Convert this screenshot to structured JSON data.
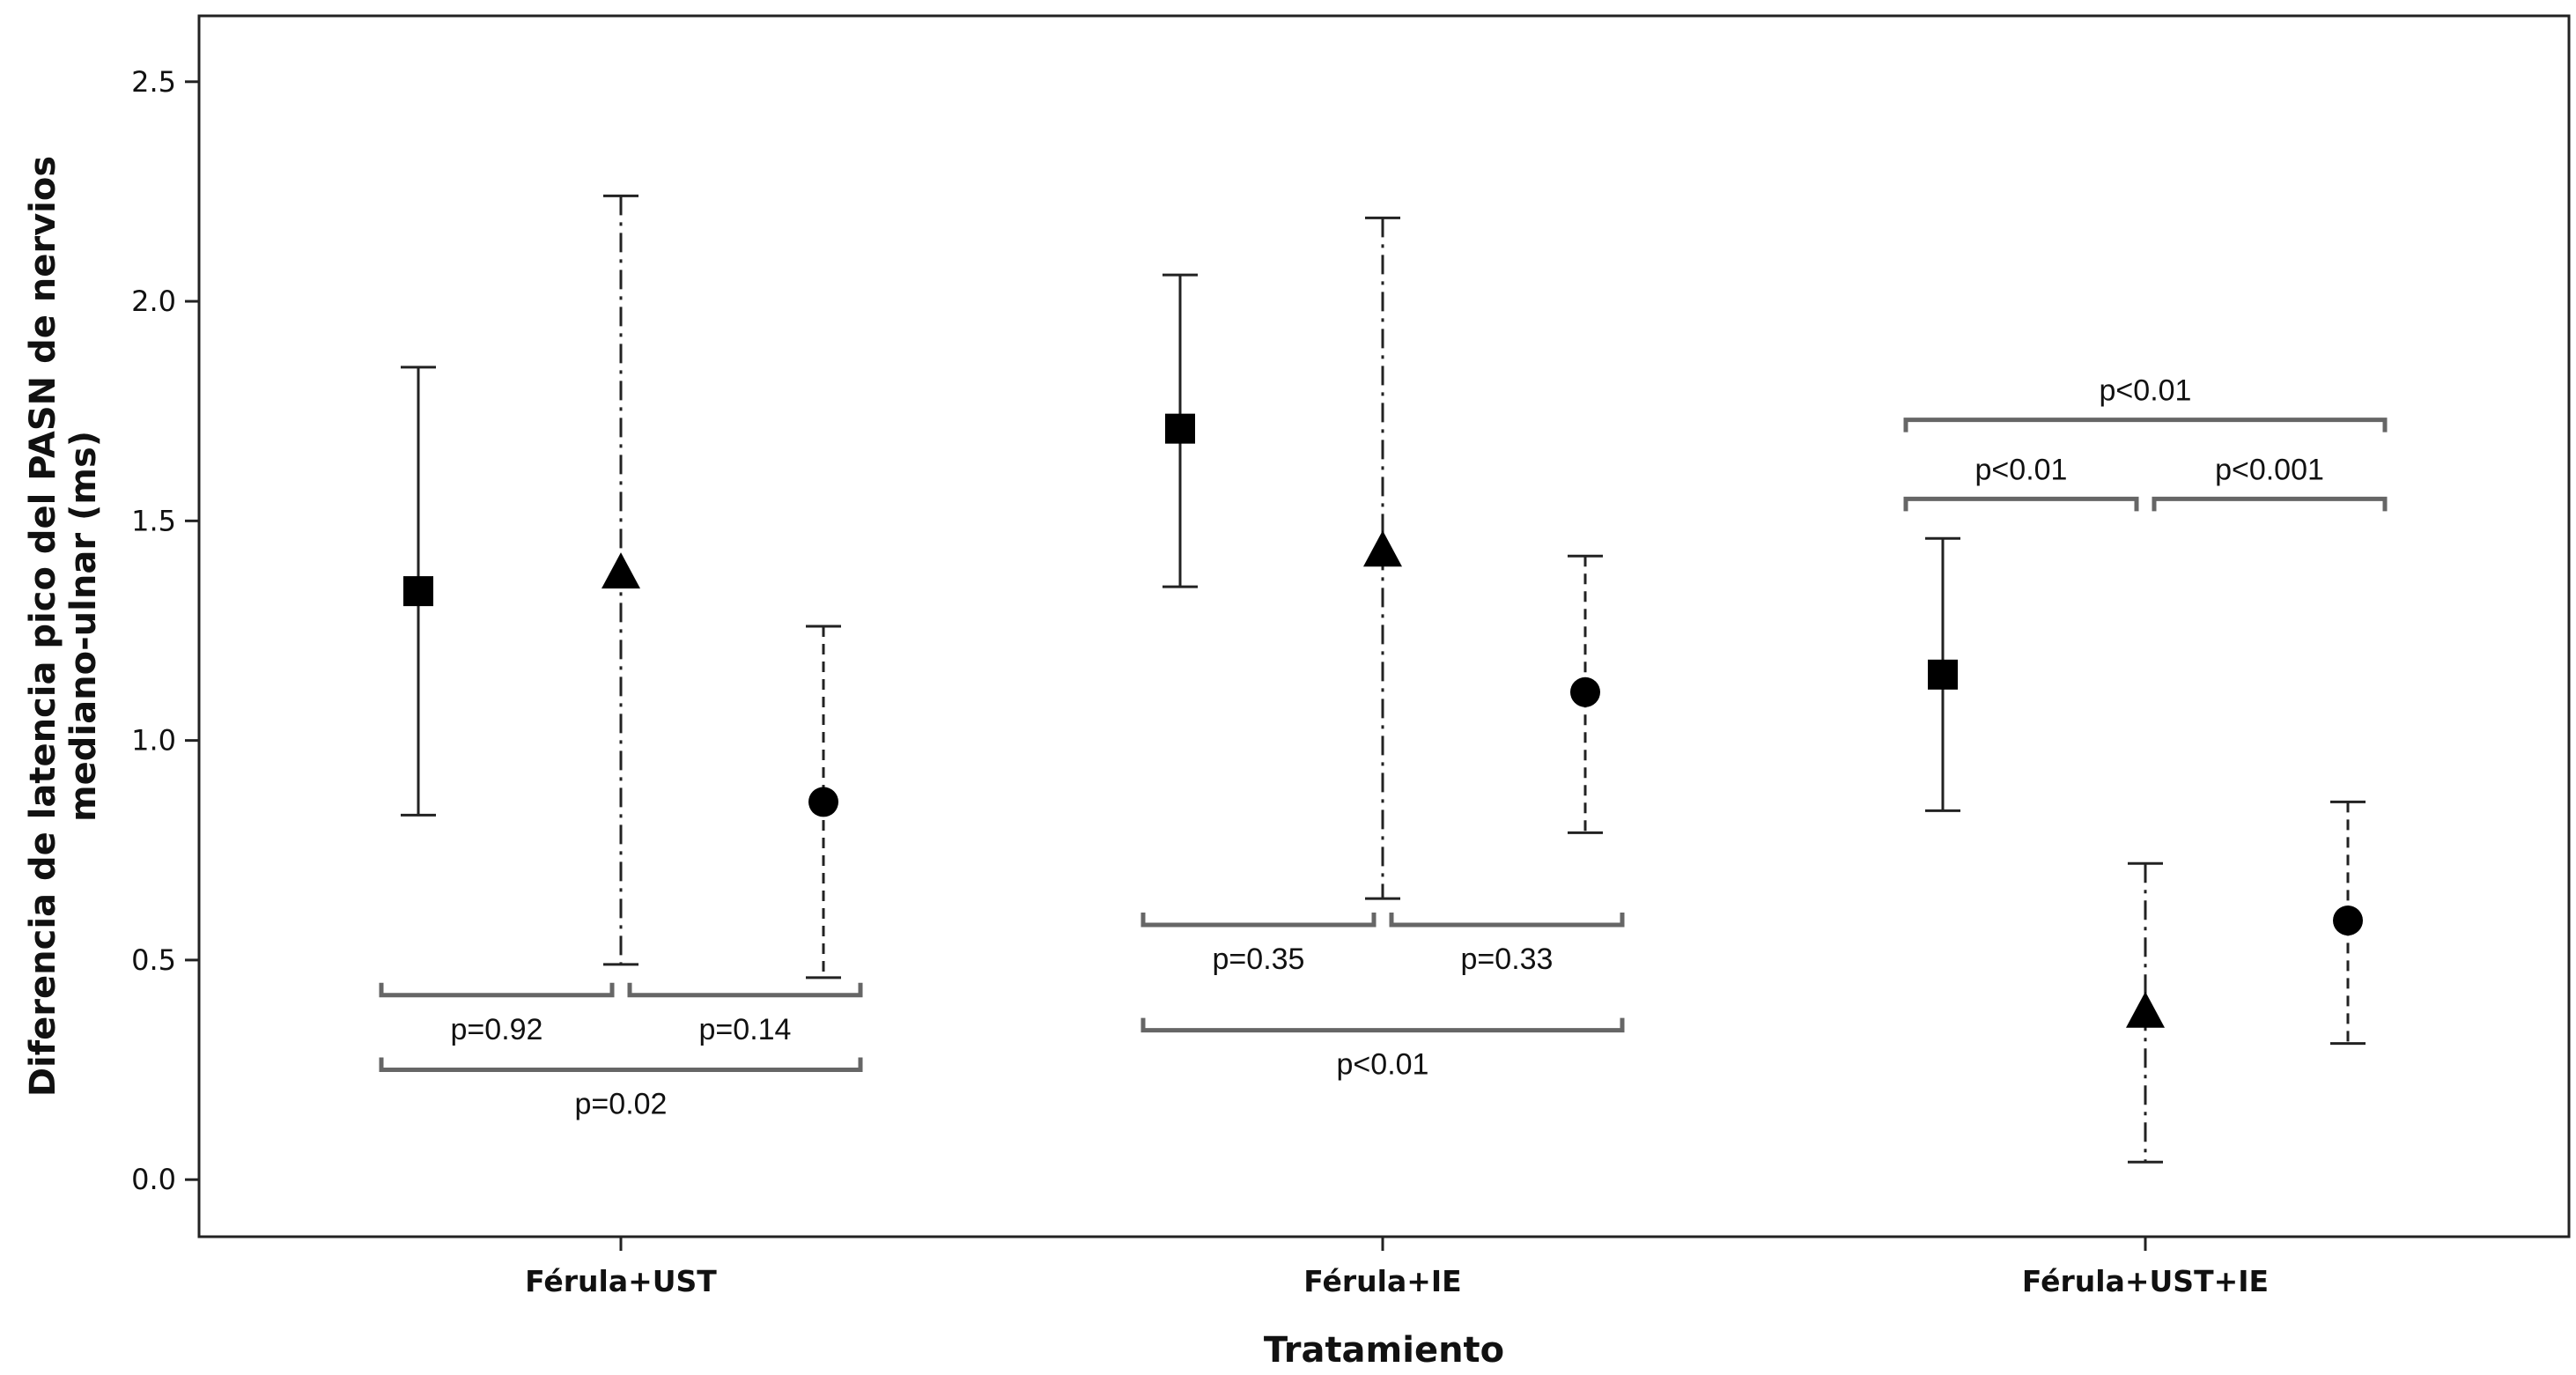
{
  "chart_data": {
    "type": "error-bar",
    "title": "",
    "xlabel": "Tratamiento",
    "ylabel_lines": [
      "Diferencia de latencia pico del PASN de nervios",
      "mediano-ulnar (ms)"
    ],
    "ylim": [
      -0.13,
      2.65
    ],
    "yticks": [
      0.0,
      0.5,
      1.0,
      1.5,
      2.0,
      2.5
    ],
    "ytick_labels": [
      "0.0",
      "0.5",
      "1.0",
      "1.5",
      "2.0",
      "2.5"
    ],
    "grid": false,
    "legend": "none",
    "categories": [
      "Férula+UST",
      "Férula+IE",
      "Férula+UST+IE"
    ],
    "groups": [
      {
        "category": "Férula+UST",
        "points": [
          {
            "marker": "square",
            "line": "solid",
            "mean": 1.34,
            "low": 0.83,
            "high": 1.85
          },
          {
            "marker": "triangle",
            "line": "dashdot",
            "mean": 1.38,
            "low": 0.49,
            "high": 2.24
          },
          {
            "marker": "circle",
            "line": "dashed",
            "mean": 0.86,
            "low": 0.46,
            "high": 1.26
          }
        ],
        "comparisons": [
          {
            "from": 0,
            "to": 1,
            "label": "p=0.92",
            "y": 0.42,
            "label_pos": "below"
          },
          {
            "from": 1,
            "to": 2,
            "label": "p=0.14",
            "y": 0.42,
            "label_pos": "below"
          },
          {
            "from": 0,
            "to": 2,
            "label": "p=0.02",
            "y": 0.25,
            "label_pos": "below"
          }
        ]
      },
      {
        "category": "Férula+IE",
        "points": [
          {
            "marker": "square",
            "line": "solid",
            "mean": 1.71,
            "low": 1.35,
            "high": 2.06
          },
          {
            "marker": "triangle",
            "line": "dashdot",
            "mean": 1.43,
            "low": 0.64,
            "high": 2.19
          },
          {
            "marker": "circle",
            "line": "dashed",
            "mean": 1.11,
            "low": 0.79,
            "high": 1.42
          }
        ],
        "comparisons": [
          {
            "from": 0,
            "to": 1,
            "label": "p=0.35",
            "y": 0.58,
            "label_pos": "below"
          },
          {
            "from": 1,
            "to": 2,
            "label": "p=0.33",
            "y": 0.58,
            "label_pos": "below"
          },
          {
            "from": 0,
            "to": 2,
            "label": "p<0.01",
            "y": 0.34,
            "label_pos": "below"
          }
        ]
      },
      {
        "category": "Férula+UST+IE",
        "points": [
          {
            "marker": "square",
            "line": "solid",
            "mean": 1.15,
            "low": 0.84,
            "high": 1.46
          },
          {
            "marker": "triangle",
            "line": "dashdot",
            "mean": 0.38,
            "low": 0.04,
            "high": 0.72
          },
          {
            "marker": "circle",
            "line": "dashed",
            "mean": 0.59,
            "low": 0.31,
            "high": 0.86
          }
        ],
        "comparisons": [
          {
            "from": 0,
            "to": 1,
            "label": "p<0.01",
            "y": 1.55,
            "label_pos": "above"
          },
          {
            "from": 1,
            "to": 2,
            "label": "p<0.001",
            "y": 1.55,
            "label_pos": "above"
          },
          {
            "from": 0,
            "to": 2,
            "label": "p<0.01",
            "y": 1.73,
            "label_pos": "above"
          }
        ]
      }
    ]
  }
}
